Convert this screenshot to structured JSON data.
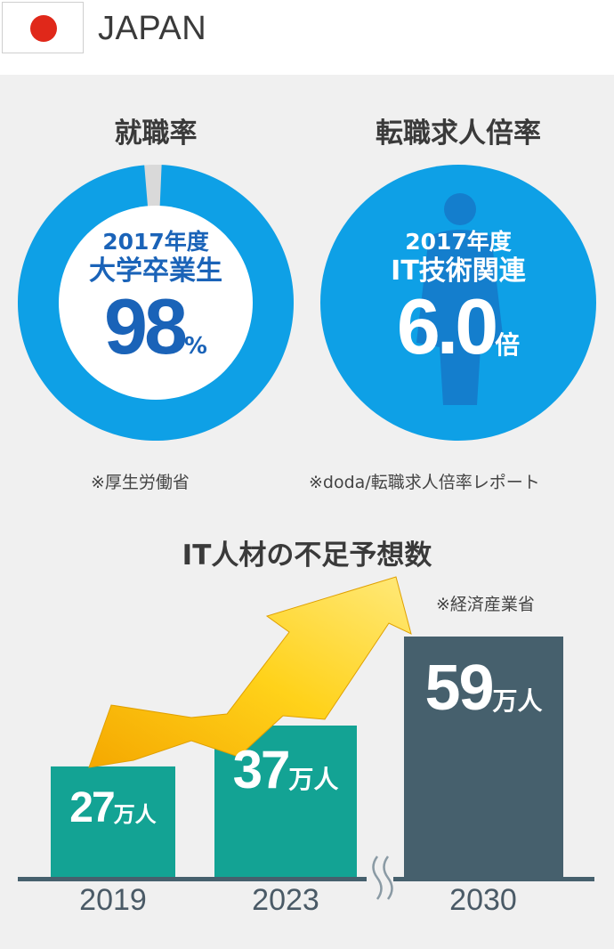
{
  "header": {
    "country": "JAPAN"
  },
  "employment": {
    "title": "就職率",
    "line1": "2017年度",
    "line2": "大学卒業生",
    "value": "98",
    "unit": "%",
    "percent": 98,
    "source": "※厚生労働省"
  },
  "job_ratio": {
    "title": "転職求人倍率",
    "line1": "2017年度",
    "line2": "IT技術関連",
    "value": "6.0",
    "unit": "倍",
    "source": "※doda/転職求人倍率レポート"
  },
  "shortage": {
    "title": "IT人材の不足予想数",
    "source": "※経済産業省"
  },
  "colors": {
    "blue": "#0ea0e6",
    "teal": "#13a394",
    "slate": "#46606d",
    "darkblue": "#1a63b8",
    "gray": "#d9d9d9"
  },
  "chart_data": {
    "type": "bar",
    "title": "IT人材の不足予想数",
    "categories": [
      "2019",
      "2023",
      "2030"
    ],
    "unit": "万人",
    "values": [
      27,
      37,
      59
    ],
    "value_labels": [
      "27",
      "37",
      "59"
    ],
    "bar_colors": [
      "#13a394",
      "#13a394",
      "#46606d"
    ],
    "axis_break_between": [
      "2023",
      "2030"
    ],
    "source": "※経済産業省"
  }
}
